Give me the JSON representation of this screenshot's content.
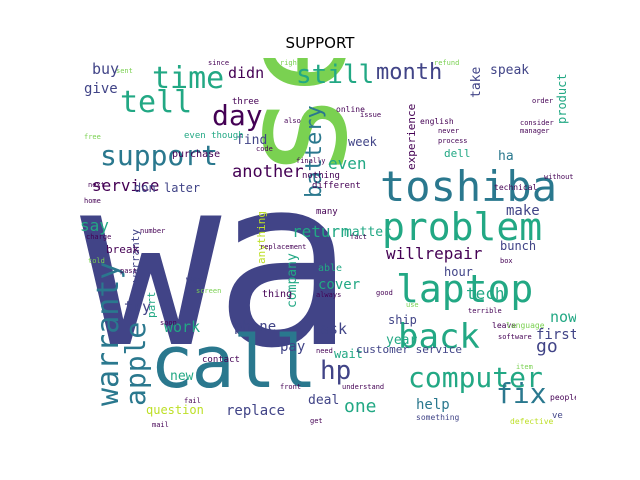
{
  "title": "SUPPORT",
  "words": {
    "wa": "wa",
    "send": "send",
    "call": "call",
    "toshiba": "toshiba",
    "problem": "problem",
    "laptop": "laptop",
    "back": "back",
    "computer": "computer",
    "time": "time",
    "support": "support",
    "tell": "tell",
    "day": "day",
    "month": "month",
    "still": "still",
    "warranty": "warranty",
    "apple": "apple",
    "fix": "fix",
    "hp": "hp",
    "willrepair": "willrepair",
    "service": "service",
    "another": "another",
    "work": "work",
    "phone": "phone",
    "return": "return",
    "battery": "battery",
    "even": "even",
    "didn": "didn",
    "buy": "buy",
    "give": "give",
    "go": "go",
    "one": "one",
    "help": "help",
    "customer_service": "customer service",
    "replace": "replace",
    "question": "question",
    "deal": "deal",
    "ship": "ship",
    "year": "year",
    "wait": "wait",
    "ask": "ask",
    "pay": "pay",
    "new": "new",
    "make": "make",
    "matter": "matter",
    "tech": "tech",
    "now": "now",
    "first": "first",
    "hour": "hour",
    "speak": "speak",
    "take": "take",
    "product": "product",
    "dell": "dell",
    "week": "week",
    "experience": "experience",
    "say": "say",
    "try": "try",
    "later": "later",
    "don": "don",
    "find": "find",
    "even_though": "even though",
    "purchase": "purchase",
    "three": "three",
    "company": "company",
    "anything": "anything",
    "able": "able",
    "cover": "cover",
    "bunch": "bunch",
    "ha": "ha",
    "break": "break",
    "part": "part",
    "contact": "contact",
    "way": "way",
    "thing": "thing",
    "many": "many",
    "nothing": "nothing",
    "different": "different",
    "english": "english",
    "receipt": "receipt",
    "technical": "technical",
    "online": "online",
    "back_small": "back",
    "leave": "leave",
    "language": "language",
    "people": "people",
    "ve": "ve",
    "something": "something",
    "defective": "defective",
    "good": "good",
    "need": "need",
    "always": "always",
    "fail": "fail",
    "sent": "sent",
    "refund": "refund",
    "never": "never",
    "manager": "manager",
    "finally": "finally",
    "replacement": "replacement",
    "free": "free",
    "next": "next",
    "home": "home",
    "told": "told",
    "charge": "charge",
    "number": "number",
    "screen": "screen",
    "issue": "issue",
    "order": "order",
    "right": "right",
    "since": "since",
    "fact": "fact",
    "process": "process",
    "code": "code",
    "box": "box",
    "mail": "mail",
    "past": "past",
    "consider": "consider",
    "without": "without",
    "software": "software",
    "item": "item",
    "front": "front",
    "terrible": "terrible",
    "understand": "understand",
    "soon": "soon",
    "use": "use",
    "also": "also",
    "get": "get"
  }
}
